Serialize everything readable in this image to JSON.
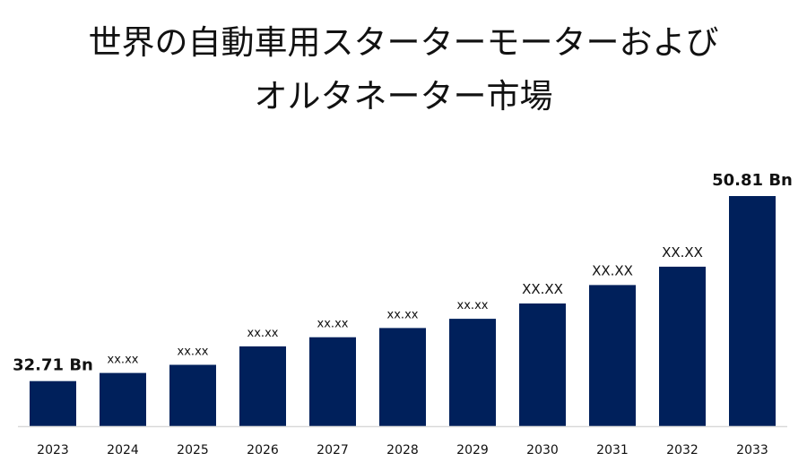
{
  "title_lines": [
    "世界の自動車用スターターモーターおよび",
    "オルタネーター市場"
  ],
  "colors": {
    "bar": "#00205b",
    "axis": "#d9d9d9",
    "text": "#111111"
  },
  "chart_data": {
    "type": "bar",
    "title": "世界の自動車用スターターモーターおよびオルタネーター市場",
    "categories": [
      "2023",
      "2024",
      "2025",
      "2026",
      "2027",
      "2028",
      "2029",
      "2030",
      "2031",
      "2032",
      "2033"
    ],
    "values": [
      32.71,
      33.5,
      34.3,
      36.1,
      37.0,
      37.9,
      38.8,
      40.3,
      42.1,
      43.9,
      50.81
    ],
    "data_labels": [
      "32.71 Bn",
      "xx.xx",
      "xx.xx",
      "xx.xx",
      "xx.xx",
      "xx.xx",
      "xx.xx",
      "XX.XX",
      "XX.XX",
      "XX.XX",
      "50.81 Bn"
    ],
    "xlabel": "",
    "ylabel": "",
    "ylim": [
      28.3,
      50.81
    ],
    "grid": false,
    "legend": "none"
  }
}
